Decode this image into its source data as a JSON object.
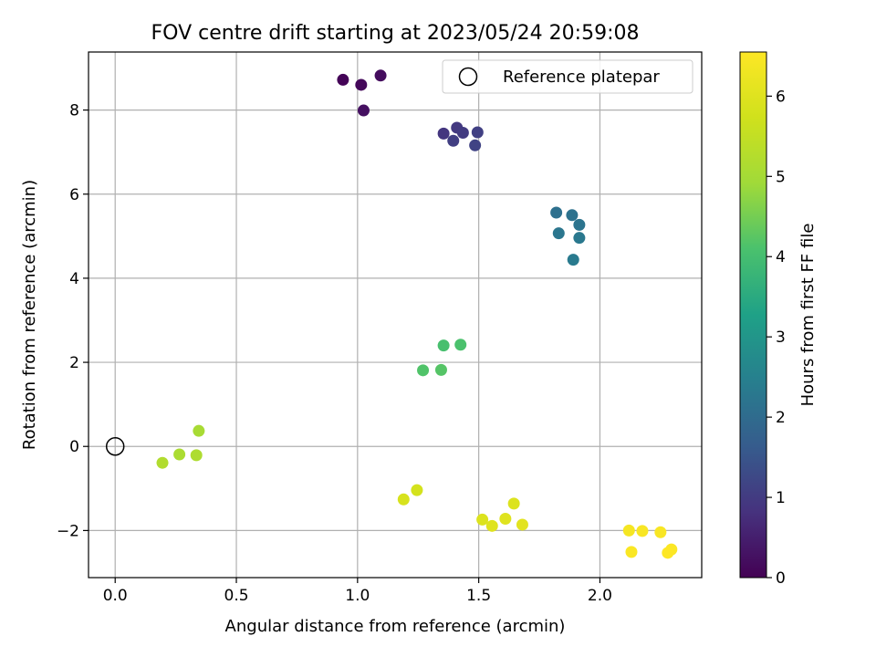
{
  "chart_data": {
    "type": "scatter",
    "title": "FOV centre drift starting at 2023/05/24 20:59:08",
    "xlabel": "Angular distance from reference (arcmin)",
    "ylabel": "Rotation from reference (arcmin)",
    "xlim": [
      -0.11,
      2.42
    ],
    "ylim": [
      -3.12,
      9.38
    ],
    "x_ticks": [
      0.0,
      0.5,
      1.0,
      1.5,
      2.0
    ],
    "x_tick_labels": [
      "0.0",
      "0.5",
      "1.0",
      "1.5",
      "2.0"
    ],
    "y_ticks": [
      -2,
      0,
      2,
      4,
      6,
      8
    ],
    "y_tick_labels": [
      "−2",
      "0",
      "2",
      "4",
      "6",
      "8"
    ],
    "grid": true,
    "legend": {
      "placement": "top-right",
      "entries": [
        "Reference platepar"
      ]
    },
    "colorbar": {
      "label": "Hours from first FF file",
      "range": [
        0,
        6.55
      ],
      "ticks": [
        0,
        1,
        2,
        3,
        4,
        5,
        6
      ],
      "tick_labels": [
        "0",
        "1",
        "2",
        "3",
        "4",
        "5",
        "6"
      ],
      "colormap": "viridis"
    },
    "reference_point": {
      "x": 0.0,
      "y": 0.0
    },
    "points": [
      {
        "x": 0.94,
        "y": 8.72,
        "hours": 0.05
      },
      {
        "x": 1.015,
        "y": 8.6,
        "hours": 0.12
      },
      {
        "x": 1.095,
        "y": 8.82,
        "hours": 0.18
      },
      {
        "x": 1.025,
        "y": 7.99,
        "hours": 0.25
      },
      {
        "x": 1.355,
        "y": 7.44,
        "hours": 0.9
      },
      {
        "x": 1.41,
        "y": 7.58,
        "hours": 0.95
      },
      {
        "x": 1.435,
        "y": 7.46,
        "hours": 1.0
      },
      {
        "x": 1.395,
        "y": 7.27,
        "hours": 1.05
      },
      {
        "x": 1.495,
        "y": 7.47,
        "hours": 1.1
      },
      {
        "x": 1.485,
        "y": 7.16,
        "hours": 1.15
      },
      {
        "x": 1.82,
        "y": 5.56,
        "hours": 2.1
      },
      {
        "x": 1.885,
        "y": 5.5,
        "hours": 2.15
      },
      {
        "x": 1.915,
        "y": 5.27,
        "hours": 2.2
      },
      {
        "x": 1.83,
        "y": 5.07,
        "hours": 2.25
      },
      {
        "x": 1.915,
        "y": 4.96,
        "hours": 2.3
      },
      {
        "x": 1.89,
        "y": 4.44,
        "hours": 2.35
      },
      {
        "x": 1.355,
        "y": 2.4,
        "hours": 4.05
      },
      {
        "x": 1.425,
        "y": 2.42,
        "hours": 4.1
      },
      {
        "x": 1.27,
        "y": 1.81,
        "hours": 4.15
      },
      {
        "x": 1.345,
        "y": 1.82,
        "hours": 4.2
      },
      {
        "x": 0.345,
        "y": 0.37,
        "hours": 5.05
      },
      {
        "x": 0.265,
        "y": -0.19,
        "hours": 5.1
      },
      {
        "x": 0.335,
        "y": -0.21,
        "hours": 5.15
      },
      {
        "x": 0.195,
        "y": -0.39,
        "hours": 5.2
      },
      {
        "x": 1.245,
        "y": -1.04,
        "hours": 5.8
      },
      {
        "x": 1.19,
        "y": -1.26,
        "hours": 5.85
      },
      {
        "x": 1.645,
        "y": -1.36,
        "hours": 5.95
      },
      {
        "x": 1.515,
        "y": -1.74,
        "hours": 5.95
      },
      {
        "x": 1.61,
        "y": -1.72,
        "hours": 6.0
      },
      {
        "x": 1.555,
        "y": -1.89,
        "hours": 6.0
      },
      {
        "x": 1.68,
        "y": -1.86,
        "hours": 6.05
      },
      {
        "x": 2.12,
        "y": -2.0,
        "hours": 6.4
      },
      {
        "x": 2.175,
        "y": -2.01,
        "hours": 6.45
      },
      {
        "x": 2.25,
        "y": -2.04,
        "hours": 6.45
      },
      {
        "x": 2.13,
        "y": -2.51,
        "hours": 6.5
      },
      {
        "x": 2.295,
        "y": -2.45,
        "hours": 6.52
      },
      {
        "x": 2.28,
        "y": -2.53,
        "hours": 6.55
      }
    ]
  }
}
